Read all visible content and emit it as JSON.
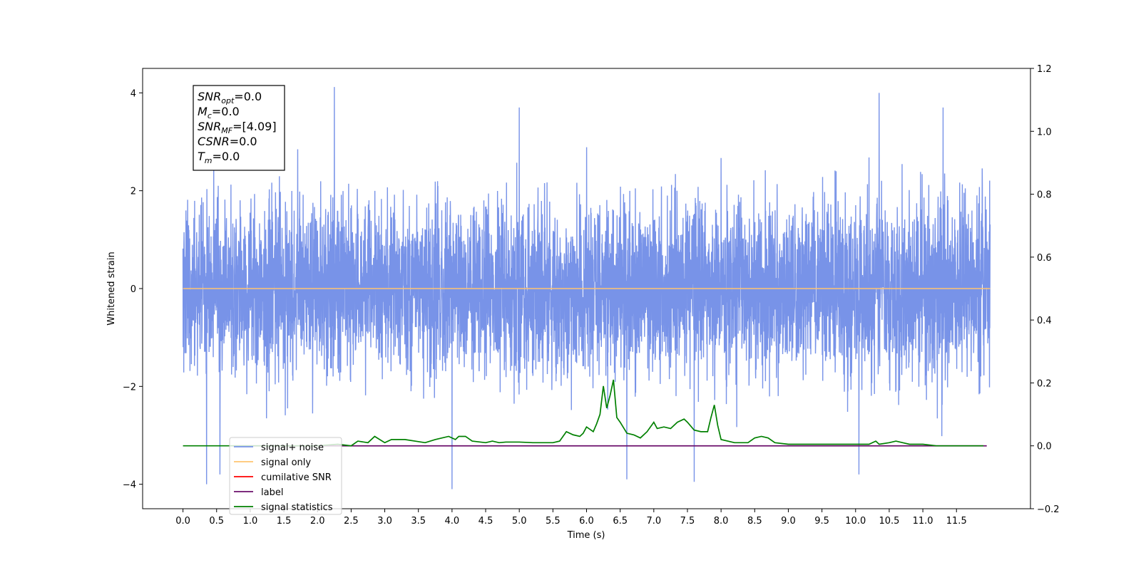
{
  "chart_data": {
    "type": "line",
    "title": "",
    "xlabel": "Time (s)",
    "ylabel": "Whitened strain",
    "y2label": "",
    "xlim": [
      -0.6,
      12.6
    ],
    "ylim": [
      -4.5,
      4.5
    ],
    "y2lim": [
      -0.2,
      1.2
    ],
    "x_ticks": [
      "0.0",
      "0.5",
      "1.0",
      "1.5",
      "2.0",
      "2.5",
      "3.0",
      "3.5",
      "4.0",
      "4.5",
      "5.0",
      "5.5",
      "6.0",
      "6.5",
      "7.0",
      "7.5",
      "8.0",
      "8.5",
      "9.0",
      "9.5",
      "10.0",
      "10.5",
      "11.0",
      "11.5"
    ],
    "y_ticks": [
      "4",
      "2",
      "0",
      "−2",
      "−4"
    ],
    "y2_ticks": [
      "1.2",
      "1.0",
      "0.8",
      "0.6",
      "0.4",
      "0.2",
      "0.0",
      "−0.2"
    ],
    "grid": false,
    "legend_placement": "lower-left",
    "info_box": {
      "lines": [
        {
          "main": "SNR",
          "sub": "opt",
          "rest": "=0.0"
        },
        {
          "main": "M",
          "sub": "c",
          "rest": "=0.0"
        },
        {
          "main": "SNR",
          "sub": "MF",
          "rest": "=[4.09]"
        },
        {
          "main": "CSNR",
          "sub": "",
          "rest": "=0.0"
        },
        {
          "main": "T",
          "sub": "m",
          "rest": "=0.0"
        }
      ]
    },
    "series": [
      {
        "name": "signal+ noise",
        "color": "#7893e8",
        "axis": "left",
        "kind": "noise",
        "x_range": [
          0.0,
          12.0
        ],
        "envelope_abs_max": 4.12,
        "typical_range": [
          -1.8,
          1.8
        ],
        "notable_peaks": [
          [
            0.35,
            -4.0
          ],
          [
            0.55,
            -3.8
          ],
          [
            2.25,
            4.12
          ],
          [
            4.0,
            -4.1
          ],
          [
            5.0,
            3.7
          ],
          [
            6.6,
            -3.9
          ],
          [
            7.6,
            -3.95
          ],
          [
            10.05,
            -3.8
          ],
          [
            10.35,
            4.0
          ],
          [
            11.3,
            3.7
          ]
        ]
      },
      {
        "name": "signal only",
        "color": "#ffc470",
        "axis": "left",
        "x": [
          0.0,
          12.0
        ],
        "y": [
          0.0,
          0.0
        ]
      },
      {
        "name": "cumilative SNR",
        "color": "#ff0000",
        "axis": "right",
        "x": [],
        "y": []
      },
      {
        "name": "label",
        "color": "#6b0f6b",
        "axis": "right",
        "x": [
          0.75,
          11.95
        ],
        "y": [
          0.0,
          0.0
        ]
      },
      {
        "name": "signal statistics",
        "color": "#008000",
        "axis": "right",
        "x": [
          0.0,
          0.5,
          1.0,
          1.5,
          2.0,
          2.3,
          2.5,
          2.6,
          2.75,
          2.85,
          3.0,
          3.1,
          3.3,
          3.6,
          3.75,
          3.85,
          3.95,
          4.05,
          4.1,
          4.2,
          4.3,
          4.5,
          4.6,
          4.7,
          4.8,
          5.0,
          5.2,
          5.5,
          5.6,
          5.7,
          5.8,
          5.9,
          5.95,
          6.0,
          6.1,
          6.15,
          6.2,
          6.25,
          6.3,
          6.35,
          6.4,
          6.45,
          6.5,
          6.6,
          6.7,
          6.8,
          6.9,
          7.0,
          7.05,
          7.15,
          7.25,
          7.35,
          7.45,
          7.5,
          7.6,
          7.7,
          7.8,
          7.85,
          7.9,
          7.95,
          8.0,
          8.2,
          8.4,
          8.5,
          8.6,
          8.7,
          8.8,
          9.0,
          9.2,
          9.5,
          9.7,
          10.0,
          10.2,
          10.3,
          10.35,
          10.5,
          10.6,
          10.7,
          10.8,
          11.0,
          11.2,
          11.5,
          11.7,
          11.9
        ],
        "y": [
          0.0,
          0.0,
          0.0,
          0.0,
          0.0,
          0.005,
          0.0,
          0.015,
          0.01,
          0.03,
          0.01,
          0.02,
          0.02,
          0.01,
          0.02,
          0.025,
          0.03,
          0.02,
          0.03,
          0.03,
          0.015,
          0.01,
          0.015,
          0.01,
          0.012,
          0.012,
          0.01,
          0.01,
          0.015,
          0.045,
          0.035,
          0.03,
          0.04,
          0.06,
          0.045,
          0.07,
          0.1,
          0.19,
          0.12,
          0.16,
          0.21,
          0.09,
          0.075,
          0.04,
          0.035,
          0.025,
          0.045,
          0.075,
          0.055,
          0.06,
          0.055,
          0.075,
          0.085,
          0.075,
          0.05,
          0.045,
          0.045,
          0.09,
          0.13,
          0.065,
          0.02,
          0.01,
          0.01,
          0.025,
          0.03,
          0.025,
          0.01,
          0.005,
          0.005,
          0.005,
          0.005,
          0.005,
          0.005,
          0.015,
          0.005,
          0.01,
          0.015,
          0.01,
          0.005,
          0.005,
          0.0,
          0.0,
          0.0,
          0.0
        ]
      }
    ]
  }
}
